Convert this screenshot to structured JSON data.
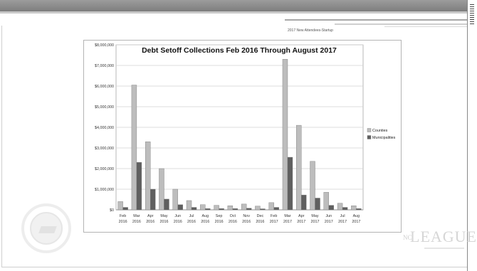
{
  "slide": {
    "caption": "2017 New Attendees-Startup",
    "logo_text": "LEAGUE",
    "logo_prefix": "NC"
  },
  "colors": {
    "counties": "#bdbdbd",
    "municipalities": "#5f5f5f",
    "banner": "#8a8a8a",
    "gridline": "#d0d0d0"
  },
  "chart_data": {
    "type": "bar",
    "title": "Debt Setoff Collections Feb 2016 Through August 2017",
    "xlabel": "",
    "ylabel": "",
    "categories": [
      [
        "Feb",
        "2016"
      ],
      [
        "Mar",
        "2016"
      ],
      [
        "Apr",
        "2016"
      ],
      [
        "May",
        "2016"
      ],
      [
        "Jun",
        "2016"
      ],
      [
        "Jul",
        "2016"
      ],
      [
        "Aug",
        "2016"
      ],
      [
        "Sep",
        "2016"
      ],
      [
        "Oct",
        "2016"
      ],
      [
        "Nov",
        "2016"
      ],
      [
        "Dec",
        "2016"
      ],
      [
        "Feb",
        "2017"
      ],
      [
        "Mar",
        "2017"
      ],
      [
        "Apr",
        "2017"
      ],
      [
        "May",
        "2017"
      ],
      [
        "Jun",
        "2017"
      ],
      [
        "Jul",
        "2017"
      ],
      [
        "Aug",
        "2017"
      ]
    ],
    "series": [
      {
        "name": "Counties",
        "color": "#bdbdbd",
        "values": [
          400000,
          6050000,
          3300000,
          2000000,
          1000000,
          450000,
          250000,
          220000,
          200000,
          280000,
          180000,
          350000,
          7300000,
          4100000,
          2350000,
          850000,
          320000,
          200000
        ]
      },
      {
        "name": "Municipalities",
        "color": "#5f5f5f",
        "values": [
          120000,
          2300000,
          1000000,
          520000,
          250000,
          120000,
          60000,
          60000,
          60000,
          80000,
          50000,
          120000,
          2550000,
          720000,
          570000,
          220000,
          120000,
          60000
        ]
      }
    ],
    "ylim": [
      0,
      8000000
    ],
    "yticks": [
      0,
      1000000,
      2000000,
      3000000,
      4000000,
      5000000,
      6000000,
      7000000,
      8000000
    ],
    "ytick_labels": [
      "$0",
      "$1,000,000",
      "$2,000,000",
      "$3,000,000",
      "$4,000,000",
      "$5,000,000",
      "$6,000,000",
      "$7,000,000",
      "$8,000,000"
    ],
    "grid": true,
    "legend": "right"
  }
}
